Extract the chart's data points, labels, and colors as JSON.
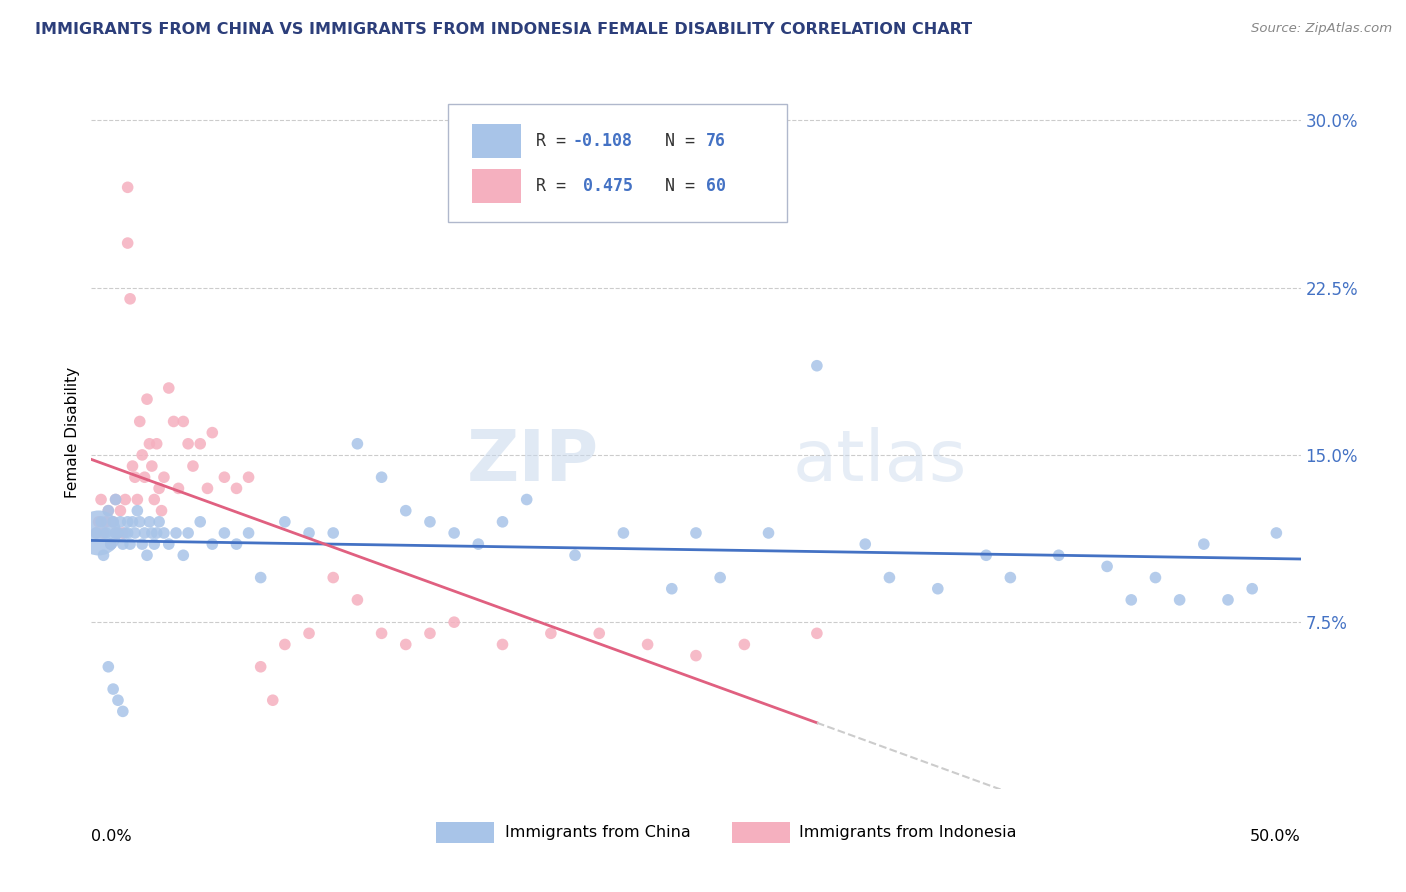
{
  "title": "IMMIGRANTS FROM CHINA VS IMMIGRANTS FROM INDONESIA FEMALE DISABILITY CORRELATION CHART",
  "source": "Source: ZipAtlas.com",
  "ylabel": "Female Disability",
  "xlim": [
    0.0,
    0.5
  ],
  "ylim": [
    0.0,
    0.32
  ],
  "yticks": [
    0.075,
    0.15,
    0.225,
    0.3
  ],
  "ytick_labels": [
    "7.5%",
    "15.0%",
    "22.5%",
    "30.0%"
  ],
  "china_R": -0.108,
  "china_N": 76,
  "indonesia_R": 0.475,
  "indonesia_N": 60,
  "china_color": "#a8c4e8",
  "indonesia_color": "#f5b0bf",
  "china_line_color": "#4472c4",
  "indonesia_line_color": "#e06080",
  "watermark_1": "ZIP",
  "watermark_2": "atlas",
  "china_scatter_x": [
    0.002,
    0.004,
    0.006,
    0.007,
    0.008,
    0.009,
    0.01,
    0.01,
    0.011,
    0.012,
    0.013,
    0.014,
    0.015,
    0.015,
    0.016,
    0.017,
    0.018,
    0.019,
    0.02,
    0.021,
    0.022,
    0.023,
    0.024,
    0.025,
    0.026,
    0.027,
    0.028,
    0.03,
    0.032,
    0.035,
    0.038,
    0.04,
    0.045,
    0.05,
    0.055,
    0.06,
    0.065,
    0.07,
    0.08,
    0.09,
    0.1,
    0.11,
    0.12,
    0.13,
    0.14,
    0.15,
    0.16,
    0.17,
    0.18,
    0.2,
    0.22,
    0.24,
    0.25,
    0.26,
    0.28,
    0.3,
    0.32,
    0.33,
    0.35,
    0.37,
    0.38,
    0.4,
    0.42,
    0.43,
    0.44,
    0.45,
    0.46,
    0.47,
    0.48,
    0.49,
    0.003,
    0.005,
    0.007,
    0.009,
    0.011,
    0.013
  ],
  "china_scatter_y": [
    0.115,
    0.12,
    0.115,
    0.125,
    0.11,
    0.12,
    0.115,
    0.13,
    0.115,
    0.12,
    0.11,
    0.115,
    0.12,
    0.115,
    0.11,
    0.12,
    0.115,
    0.125,
    0.12,
    0.11,
    0.115,
    0.105,
    0.12,
    0.115,
    0.11,
    0.115,
    0.12,
    0.115,
    0.11,
    0.115,
    0.105,
    0.115,
    0.12,
    0.11,
    0.115,
    0.11,
    0.115,
    0.095,
    0.12,
    0.115,
    0.115,
    0.155,
    0.14,
    0.125,
    0.12,
    0.115,
    0.11,
    0.12,
    0.13,
    0.105,
    0.115,
    0.09,
    0.115,
    0.095,
    0.115,
    0.19,
    0.11,
    0.095,
    0.09,
    0.105,
    0.095,
    0.105,
    0.1,
    0.085,
    0.095,
    0.085,
    0.11,
    0.085,
    0.09,
    0.115,
    0.115,
    0.105,
    0.055,
    0.045,
    0.04,
    0.035
  ],
  "china_scatter_size": [
    20,
    20,
    20,
    20,
    20,
    20,
    20,
    20,
    20,
    20,
    20,
    20,
    20,
    20,
    20,
    20,
    20,
    20,
    20,
    20,
    20,
    20,
    20,
    20,
    20,
    20,
    20,
    20,
    20,
    20,
    20,
    20,
    20,
    20,
    20,
    20,
    20,
    20,
    20,
    20,
    20,
    20,
    20,
    20,
    20,
    20,
    20,
    20,
    20,
    20,
    20,
    20,
    20,
    20,
    20,
    20,
    20,
    20,
    20,
    20,
    20,
    20,
    20,
    20,
    20,
    20,
    20,
    20,
    20,
    20,
    300,
    20,
    20,
    20,
    20,
    20
  ],
  "indonesia_scatter_x": [
    0.002,
    0.003,
    0.004,
    0.005,
    0.006,
    0.007,
    0.008,
    0.009,
    0.01,
    0.01,
    0.011,
    0.012,
    0.013,
    0.014,
    0.015,
    0.015,
    0.016,
    0.017,
    0.018,
    0.019,
    0.02,
    0.021,
    0.022,
    0.023,
    0.024,
    0.025,
    0.026,
    0.027,
    0.028,
    0.029,
    0.03,
    0.032,
    0.034,
    0.036,
    0.038,
    0.04,
    0.042,
    0.045,
    0.048,
    0.05,
    0.055,
    0.06,
    0.065,
    0.07,
    0.075,
    0.08,
    0.09,
    0.1,
    0.11,
    0.12,
    0.13,
    0.14,
    0.15,
    0.17,
    0.19,
    0.21,
    0.23,
    0.25,
    0.27,
    0.3
  ],
  "indonesia_scatter_y": [
    0.115,
    0.12,
    0.13,
    0.115,
    0.12,
    0.125,
    0.11,
    0.12,
    0.115,
    0.13,
    0.115,
    0.125,
    0.115,
    0.13,
    0.27,
    0.245,
    0.22,
    0.145,
    0.14,
    0.13,
    0.165,
    0.15,
    0.14,
    0.175,
    0.155,
    0.145,
    0.13,
    0.155,
    0.135,
    0.125,
    0.14,
    0.18,
    0.165,
    0.135,
    0.165,
    0.155,
    0.145,
    0.155,
    0.135,
    0.16,
    0.14,
    0.135,
    0.14,
    0.055,
    0.04,
    0.065,
    0.07,
    0.095,
    0.085,
    0.07,
    0.065,
    0.07,
    0.075,
    0.065,
    0.07,
    0.07,
    0.065,
    0.06,
    0.065,
    0.07
  ],
  "indonesia_scatter_size": [
    20,
    20,
    20,
    20,
    20,
    20,
    20,
    20,
    20,
    20,
    20,
    20,
    20,
    20,
    20,
    20,
    20,
    20,
    20,
    20,
    20,
    20,
    20,
    20,
    20,
    20,
    20,
    20,
    20,
    20,
    20,
    20,
    20,
    20,
    20,
    20,
    20,
    20,
    20,
    20,
    20,
    20,
    20,
    20,
    20,
    20,
    20,
    20,
    20,
    20,
    20,
    20,
    20,
    20,
    20,
    20,
    20,
    20,
    20,
    20
  ]
}
